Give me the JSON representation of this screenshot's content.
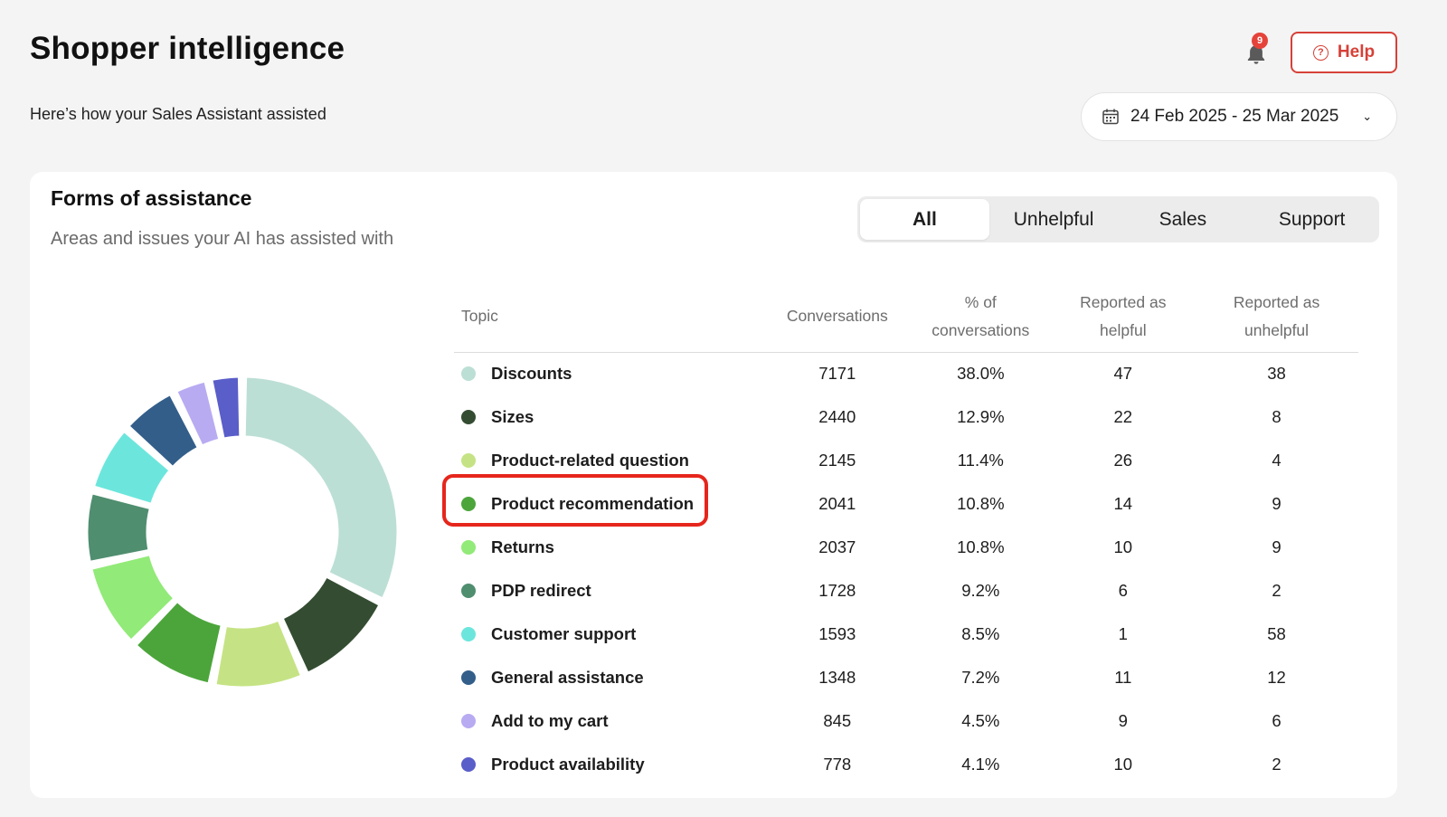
{
  "header": {
    "title": "Shopper intelligence",
    "subtitle": "Here’s how your Sales Assistant assisted",
    "notification_count": "9",
    "help_label": "Help",
    "date_range": "24 Feb 2025 - 25 Mar 2025"
  },
  "card": {
    "title": "Forms of assistance",
    "subtitle": "Areas and issues your AI has assisted with"
  },
  "filters": {
    "tabs": [
      "All",
      "Unhelpful",
      "Sales",
      "Support"
    ],
    "active": "All"
  },
  "table": {
    "headers": {
      "topic": "Topic",
      "conversations": "Conversations",
      "pct_line1": "% of",
      "pct_line2": "conversations",
      "helpful_line1": "Reported as",
      "helpful_line2": "helpful",
      "unhelpful_line1": "Reported as",
      "unhelpful_line2": "unhelpful"
    },
    "rows": [
      {
        "topic": "Discounts",
        "color": "#bcdfd5",
        "conversations": "7171",
        "pct": "38.0%",
        "helpful": "47",
        "unhelpful": "38"
      },
      {
        "topic": "Sizes",
        "color": "#344d32",
        "conversations": "2440",
        "pct": "12.9%",
        "helpful": "22",
        "unhelpful": "8"
      },
      {
        "topic": "Product-related question",
        "color": "#c5e384",
        "conversations": "2145",
        "pct": "11.4%",
        "helpful": "26",
        "unhelpful": "4"
      },
      {
        "topic": "Product recommendation",
        "color": "#4ca53b",
        "conversations": "2041",
        "pct": "10.8%",
        "helpful": "14",
        "unhelpful": "9"
      },
      {
        "topic": "Returns",
        "color": "#92ea78",
        "conversations": "2037",
        "pct": "10.8%",
        "helpful": "10",
        "unhelpful": "9"
      },
      {
        "topic": "PDP redirect",
        "color": "#4f8e6f",
        "conversations": "1728",
        "pct": "9.2%",
        "helpful": "6",
        "unhelpful": "2"
      },
      {
        "topic": "Customer support",
        "color": "#6ce6dc",
        "conversations": "1593",
        "pct": "8.5%",
        "helpful": "1",
        "unhelpful": "58"
      },
      {
        "topic": "General assistance",
        "color": "#335e8a",
        "conversations": "1348",
        "pct": "7.2%",
        "helpful": "11",
        "unhelpful": "12"
      },
      {
        "topic": "Add to my cart",
        "color": "#b8abf2",
        "conversations": "845",
        "pct": "4.5%",
        "helpful": "9",
        "unhelpful": "6"
      },
      {
        "topic": "Product availability",
        "color": "#5a5ec9",
        "conversations": "778",
        "pct": "4.1%",
        "helpful": "10",
        "unhelpful": "2"
      }
    ]
  },
  "highlighted_row": "Product recommendation"
}
